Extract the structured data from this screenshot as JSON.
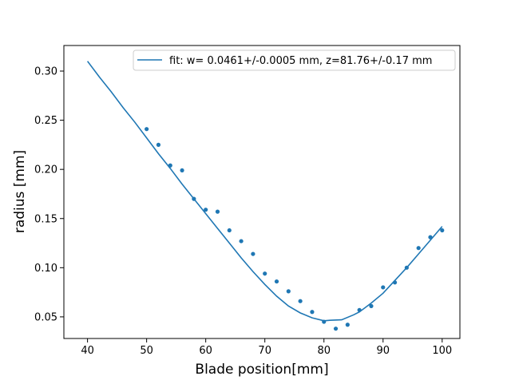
{
  "chart_data": {
    "type": "scatter",
    "xlabel": "Blade position[mm]",
    "ylabel": "radius [mm]",
    "xlim": [
      36,
      103
    ],
    "ylim": [
      0.028,
      0.326
    ],
    "x_ticks": [
      40,
      50,
      60,
      70,
      80,
      90,
      100
    ],
    "x_tick_labels": [
      "40",
      "50",
      "60",
      "70",
      "80",
      "90",
      "100"
    ],
    "y_ticks": [
      0.05,
      0.1,
      0.15,
      0.2,
      0.25,
      0.3
    ],
    "y_tick_labels": [
      "0.05",
      "0.10",
      "0.15",
      "0.20",
      "0.25",
      "0.30"
    ],
    "grid": false,
    "legend_position": "top-right",
    "color": "#1f77b4",
    "series": [
      {
        "kind": "scatter",
        "points": [
          [
            50,
            0.241
          ],
          [
            52,
            0.225
          ],
          [
            54,
            0.204
          ],
          [
            56,
            0.199
          ],
          [
            58,
            0.17
          ],
          [
            60,
            0.159
          ],
          [
            62,
            0.157
          ],
          [
            64,
            0.138
          ],
          [
            66,
            0.127
          ],
          [
            68,
            0.114
          ],
          [
            70,
            0.094
          ],
          [
            72,
            0.086
          ],
          [
            74,
            0.076
          ],
          [
            76,
            0.066
          ],
          [
            78,
            0.055
          ],
          [
            80,
            0.045
          ],
          [
            82,
            0.038
          ],
          [
            84,
            0.042
          ],
          [
            86,
            0.057
          ],
          [
            88,
            0.061
          ],
          [
            90,
            0.08
          ],
          [
            92,
            0.085
          ],
          [
            94,
            0.1
          ],
          [
            96,
            0.12
          ],
          [
            98,
            0.131
          ],
          [
            100,
            0.138
          ]
        ]
      },
      {
        "kind": "line",
        "name": "fit: w= 0.0461+/-0.0005 mm, z=81.76+/-0.17 mm",
        "points": [
          [
            40,
            0.31
          ],
          [
            42,
            0.294
          ],
          [
            44,
            0.279
          ],
          [
            46,
            0.263
          ],
          [
            48,
            0.248
          ],
          [
            50,
            0.232
          ],
          [
            52,
            0.216
          ],
          [
            54,
            0.201
          ],
          [
            56,
            0.185
          ],
          [
            58,
            0.17
          ],
          [
            60,
            0.155
          ],
          [
            62,
            0.14
          ],
          [
            64,
            0.125
          ],
          [
            66,
            0.11
          ],
          [
            68,
            0.096
          ],
          [
            70,
            0.083
          ],
          [
            72,
            0.071
          ],
          [
            74,
            0.061
          ],
          [
            76,
            0.054
          ],
          [
            78,
            0.049
          ],
          [
            80,
            0.046
          ],
          [
            81,
            0.0465
          ],
          [
            83,
            0.047
          ],
          [
            85,
            0.052
          ],
          [
            86,
            0.055
          ],
          [
            88,
            0.064
          ],
          [
            90,
            0.074
          ],
          [
            92,
            0.087
          ],
          [
            94,
            0.1
          ],
          [
            96,
            0.114
          ],
          [
            98,
            0.128
          ],
          [
            100,
            0.142
          ]
        ]
      }
    ]
  }
}
